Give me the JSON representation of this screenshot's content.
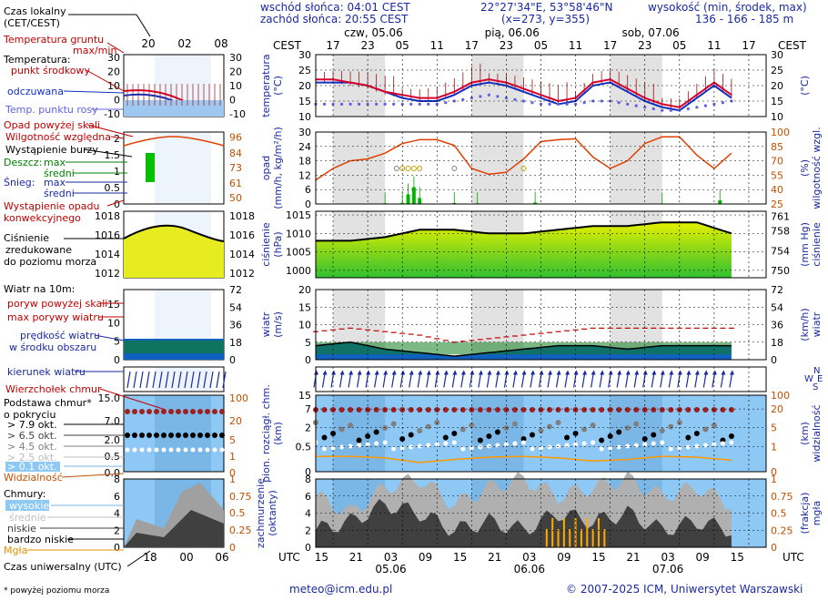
{
  "header": {
    "sunrise": "wschód słońca: 04:01 CEST",
    "sunset": "zachód słońca: 20:55 CEST",
    "coords": "22°27'34\"E, 53°58'46\"N",
    "grid": "(x=273, y=355)",
    "elev_title": "wysokość (min, środek, max)",
    "elev_values": "136 - 166 - 185 m"
  },
  "time": {
    "cest_label": "CEST",
    "utc_label": "UTC",
    "days_top": [
      "czw, 05.06",
      "pią, 06.06",
      "sob, 07.06"
    ],
    "days_bottom": [
      "05.06",
      "06.06",
      "07.06"
    ],
    "cest_ticks": [
      "17",
      "23",
      "05",
      "11",
      "17",
      "23",
      "05",
      "11",
      "17",
      "23",
      "05",
      "11",
      "17"
    ],
    "utc_ticks": [
      "15",
      "21",
      "03",
      "09",
      "15",
      "21",
      "03",
      "09",
      "15",
      "21",
      "03",
      "09",
      "15"
    ],
    "legend_top_ticks": [
      "20",
      "02",
      "08"
    ],
    "legend_bottom_ticks": [
      "18",
      "00",
      "06"
    ]
  },
  "legend": {
    "local_time": "Czas lokalny",
    "local_time_sub": "(CET/CEST)",
    "soil": "Temperatura gruntu",
    "maxmin": "max/min",
    "temperature": "Temperatura:",
    "center_point": "punkt środkowy",
    "perceived": "odczuwana",
    "dew": "Temp. punktu rosy",
    "precip_above": "Opad powyżej skali",
    "humidity": "Wilgotność względna",
    "storm": "Wystąpienie burzy",
    "rain": "Deszcz:",
    "max": "max",
    "avg": "średni",
    "snow": "Śnieg:",
    "convective": "Wystąpienie opadu",
    "convective2": "konwekcyjnego",
    "pressure1": "Ciśnienie",
    "pressure2": "zredukowane",
    "pressure3": "do poziomu morza",
    "wind10": "Wiatr na 10m:",
    "gust_above": "poryw powyżej skali",
    "max_gust": "max porywy wiatru",
    "wind_speed": "prędkość wiatru",
    "wind_speed2": "w środku obszaru",
    "wind_dir": "kierunek wiatru",
    "cloud_top": "Wierzchołek chmur",
    "cloud_base": "Podstawa chmur*",
    "cloud_base2": "o pokryciu",
    "okt79": "> 7.9 okt.",
    "okt65": "> 6.5 okt.",
    "okt45": "> 4.5 okt.",
    "okt25": "> 2.5 okt.",
    "okt01": "> 0.1 okt.",
    "visibility": "Widzialność",
    "clouds": "Chmury:",
    "high": "wysokie",
    "medium": "średnie",
    "low": "niskie",
    "very_low": "bardzo niskie",
    "fog": "Mgła",
    "utc_time": "Czas uniwersalny (UTC)",
    "footnote": "* powyżej poziomu morza"
  },
  "axes": {
    "temp": [
      "temperatura",
      "(°C)"
    ],
    "precip": [
      "opad",
      "(mm/h, kg/m²/h)"
    ],
    "humidity": [
      "wilgotność wzgl.",
      "(%)"
    ],
    "pressure": [
      "ciśnienie",
      "(hPa)"
    ],
    "pressure_mm": [
      "ciśnienie",
      "(mm Hg)"
    ],
    "wind": [
      "wiatr",
      "(m/s)"
    ],
    "wind_kmh": [
      "wiatr",
      "(km/h)"
    ],
    "cloud": [
      "pion. rozciągł. chm.",
      "(km)"
    ],
    "visibility": [
      "widzialność",
      "(km)"
    ],
    "coverage": [
      "zachmurzenie",
      "(oktanty)"
    ],
    "fog": [
      "mgła",
      "(frakcja)"
    ],
    "compass": [
      "N",
      "W",
      "E",
      "S"
    ]
  },
  "footer": {
    "email": "meteo@icm.edu.pl",
    "copyright": "© 2007-2025 ICM, Uniwersytet Warszawski"
  },
  "colors": {
    "temp": "#d8002a",
    "perceived": "#1030c0",
    "dew": "#6060e0",
    "humidity": "#e04000",
    "rain_max": "#00c000",
    "rain_avg": "#007000",
    "pressure": "#000000",
    "wind_line": "#000000",
    "gust": "#c00000",
    "sky": "#8ec8f4",
    "cloud_top": "#a02020",
    "visibility": "#ff9900",
    "fog": "#ffaa00"
  },
  "chart_data": [
    {
      "type": "line",
      "title": "temperatura (°C)",
      "x_hours_from_start": [
        0,
        3,
        6,
        9,
        12,
        15,
        18,
        21,
        24,
        27,
        30,
        33,
        36,
        39,
        42,
        45,
        48,
        51,
        54,
        57,
        60,
        63,
        66,
        69,
        72
      ],
      "series": [
        {
          "name": "punkt środkowy",
          "values": [
            22,
            22,
            21,
            20,
            18,
            17,
            16,
            16,
            18,
            21,
            22,
            21,
            19,
            17,
            15,
            16,
            21,
            22,
            19,
            16,
            14,
            13,
            17,
            21,
            17
          ]
        },
        {
          "name": "odczuwana",
          "values": [
            21,
            21,
            21,
            20,
            18,
            16,
            15,
            15,
            17,
            20,
            21,
            20,
            18,
            16,
            14,
            15,
            20,
            21,
            18,
            15,
            13,
            12,
            16,
            20,
            16
          ]
        },
        {
          "name": "temp. punktu rosy",
          "values": [
            14,
            14,
            14,
            14,
            14,
            14,
            14,
            14,
            15,
            16,
            17,
            16,
            15,
            14,
            14,
            14,
            15,
            15,
            14,
            13,
            12,
            12,
            13,
            14,
            15
          ]
        }
      ],
      "ylim": [
        10,
        30
      ]
    },
    {
      "type": "line",
      "title": "wilgotność wzgl. (%)",
      "x_hours_from_start": [
        0,
        3,
        6,
        9,
        12,
        15,
        18,
        21,
        24,
        27,
        30,
        33,
        36,
        39,
        42,
        45,
        48,
        51,
        54,
        57,
        60,
        63,
        66,
        69,
        72
      ],
      "values": [
        50,
        62,
        70,
        72,
        78,
        88,
        92,
        92,
        86,
        62,
        56,
        58,
        72,
        90,
        92,
        93,
        74,
        62,
        70,
        88,
        95,
        95,
        76,
        62,
        78
      ],
      "ylim": [
        25,
        100
      ]
    },
    {
      "type": "bar",
      "title": "opad (mm/h)",
      "x_hours_from_start": [
        12,
        15,
        16,
        17,
        18,
        24,
        28,
        38,
        60,
        70
      ],
      "values": [
        0.3,
        0.5,
        4.0,
        7.0,
        2.5,
        0.4,
        0.3,
        0.6,
        0.2,
        1.5
      ],
      "ylim": [
        0,
        30
      ]
    },
    {
      "type": "line",
      "title": "ciśnienie (hPa)",
      "x_hours_from_start": [
        0,
        6,
        12,
        18,
        24,
        30,
        36,
        42,
        48,
        54,
        60,
        66,
        72
      ],
      "values": [
        1008,
        1008,
        1009,
        1011,
        1011,
        1010,
        1010,
        1011,
        1012,
        1012,
        1013,
        1013,
        1010
      ],
      "ylim": [
        998,
        1016
      ]
    },
    {
      "type": "area",
      "title": "wiatr (m/s)",
      "x_hours_from_start": [
        0,
        6,
        12,
        18,
        24,
        30,
        36,
        42,
        48,
        54,
        60,
        66,
        72
      ],
      "series": [
        {
          "name": "prędkość wiatru",
          "values": [
            4,
            5,
            3,
            2,
            1,
            2,
            3,
            4,
            4,
            3,
            4,
            4,
            4
          ]
        },
        {
          "name": "max porywy wiatru",
          "values": [
            8,
            9,
            8,
            7,
            5,
            6,
            7,
            8,
            9,
            9,
            9,
            9,
            9
          ]
        }
      ],
      "ylim": [
        0,
        20
      ]
    },
    {
      "type": "line",
      "title": "widzialność (km)",
      "x_hours_from_start": [
        0,
        6,
        12,
        18,
        24,
        30,
        36,
        42,
        48,
        54,
        60,
        66,
        72
      ],
      "values": [
        20,
        20,
        18,
        12,
        16,
        19,
        20,
        18,
        14,
        16,
        20,
        19,
        15
      ],
      "ylim": [
        0,
        100
      ]
    },
    {
      "type": "area",
      "title": "zachmurzenie (oktanty)",
      "x_hours_from_start": [
        0,
        6,
        12,
        18,
        24,
        30,
        36,
        42,
        48,
        54,
        60,
        66,
        72
      ],
      "series": [
        {
          "name": "wysokie",
          "values": [
            6,
            4,
            7,
            8,
            5,
            7,
            8,
            6,
            7,
            8,
            6,
            7,
            5
          ]
        },
        {
          "name": "niskie",
          "values": [
            2,
            3,
            5,
            4,
            2,
            3,
            2,
            4,
            3,
            4,
            2,
            3,
            2
          ]
        }
      ],
      "ylim": [
        0,
        8
      ]
    }
  ]
}
